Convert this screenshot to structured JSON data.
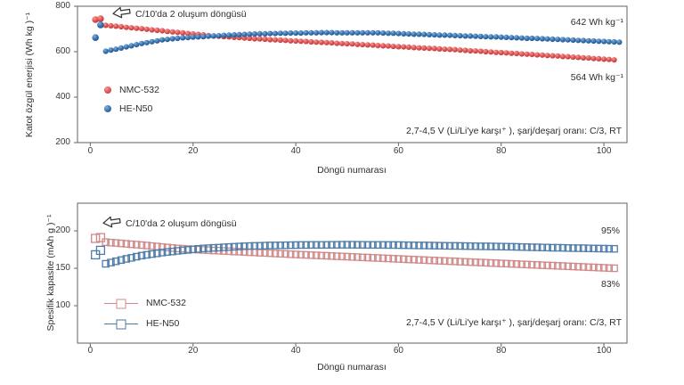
{
  "figure": {
    "background": "#ffffff",
    "text_color": "#2e2e2e",
    "axis_color": "#707070"
  },
  "chart_data": [
    {
      "id": "energy",
      "type": "scatter",
      "marker": "circle",
      "xlabel": "Döngü numarası",
      "ylabel": "Katot özgül enerjisi (Wh kg )⁻¹",
      "xlim": [
        -2.5,
        104.5
      ],
      "ylim": [
        200,
        800
      ],
      "x_ticks": [
        0,
        20,
        40,
        60,
        80,
        100
      ],
      "y_ticks": [
        800,
        600,
        400,
        200
      ],
      "grid": false,
      "legend_position": "center-left",
      "annotations": {
        "formation": "C/10'da 2 oluşum döngüsü",
        "conditions": "2,7-4,5 V (Li/Li'ye karşı⁺ ), şarj/deşarj oranı: C/3, RT",
        "end_value_top": "642 Wh kg⁻¹",
        "end_value_bottom": "564 Wh kg⁻¹"
      },
      "series": [
        {
          "name": "NMC-532",
          "color": "#dd5152",
          "color_light": "#f29a96",
          "color_dark": "#b23434",
          "formation_points": [
            [
              1,
              741
            ],
            [
              2,
              745
            ]
          ],
          "cycle_start": 3,
          "values": [
            716,
            714,
            712,
            710,
            707,
            705,
            703,
            701,
            699,
            696,
            694,
            692,
            689,
            687,
            685,
            683,
            680,
            678,
            676,
            674,
            671,
            669,
            668,
            666,
            665,
            663,
            662,
            660,
            659,
            657,
            656,
            655,
            653,
            652,
            651,
            650,
            648,
            647,
            646,
            645,
            643,
            642,
            641,
            640,
            639,
            637,
            636,
            635,
            634,
            632,
            631,
            630,
            629,
            627,
            626,
            625,
            623,
            622,
            621,
            620,
            618,
            617,
            616,
            615,
            614,
            612,
            611,
            610,
            609,
            607,
            606,
            604,
            603,
            602,
            600,
            599,
            597,
            596,
            595,
            593,
            592,
            590,
            589,
            588,
            586,
            585,
            583,
            582,
            581,
            579,
            578,
            576,
            575,
            573,
            572,
            570,
            569,
            567,
            566,
            564
          ]
        },
        {
          "name": "HE-N50",
          "color": "#3570af",
          "color_light": "#88b0d8",
          "color_dark": "#1d4e85",
          "formation_points": [
            [
              1,
              662
            ],
            [
              2,
              718
            ]
          ],
          "cycle_start": 3,
          "values": [
            602,
            607,
            611,
            616,
            621,
            626,
            631,
            636,
            640,
            644,
            648,
            652,
            654,
            657,
            659,
            661,
            662,
            664,
            665,
            666,
            668,
            669,
            670,
            672,
            673,
            674,
            675,
            676,
            677,
            678,
            679,
            679,
            680,
            680,
            681,
            681,
            682,
            682,
            682,
            683,
            683,
            683,
            684,
            684,
            684,
            683,
            683,
            683,
            683,
            683,
            683,
            683,
            683,
            683,
            682,
            681,
            681,
            680,
            679,
            678,
            677,
            677,
            676,
            675,
            674,
            673,
            673,
            672,
            671,
            670,
            669,
            669,
            668,
            667,
            666,
            665,
            665,
            664,
            663,
            662,
            661,
            660,
            659,
            659,
            658,
            657,
            656,
            655,
            654,
            653,
            652,
            651,
            650,
            649,
            648,
            647,
            646,
            645,
            644,
            643,
            642
          ]
        }
      ]
    },
    {
      "id": "capacity",
      "type": "scatter",
      "marker": "square",
      "xlabel": "Döngü numarası",
      "ylabel": "Spesifik kapasite (mAh g )⁻¹",
      "xlim": [
        -2.5,
        104.5
      ],
      "ylim": [
        50,
        237
      ],
      "x_ticks": [
        0,
        20,
        40,
        60,
        80,
        100
      ],
      "y_ticks": [
        200,
        150,
        100
      ],
      "grid": false,
      "legend_position": "center-left",
      "annotations": {
        "formation": "C/10'da 2 oluşum döngüsü",
        "conditions": "2,7-4,5 V (Li/Li'ye karşı⁺ ), şarj/deşarj oranı: C/3, RT",
        "retention_top": "95%",
        "retention_bottom": "83%"
      },
      "series": [
        {
          "name": "NMC-532",
          "color": "#d08888",
          "formation_points": [
            [
              1,
              190
            ],
            [
              2,
              191
            ]
          ],
          "cycle_start": 3,
          "values": [
            185,
            184.4,
            183.9,
            183.3,
            182.7,
            182.1,
            181.6,
            181,
            180.4,
            179.7,
            179.1,
            178.4,
            177.8,
            177.1,
            176.5,
            176.1,
            175.7,
            175.3,
            174.9,
            174.5,
            174.2,
            173.8,
            173.5,
            173.2,
            172.8,
            172.5,
            172.2,
            171.8,
            171.5,
            171.2,
            170.8,
            170.5,
            170.2,
            169.8,
            169.5,
            169.2,
            168.8,
            168.5,
            168.2,
            167.9,
            167.6,
            167.3,
            167,
            166.7,
            166.4,
            166.1,
            165.8,
            165.5,
            165.2,
            164.9,
            164.6,
            164.3,
            164,
            163.7,
            163.4,
            163.1,
            162.8,
            162.5,
            162.2,
            161.9,
            161.6,
            161.3,
            161,
            160.7,
            160.4,
            160.1,
            159.8,
            159.5,
            159.2,
            158.9,
            158.6,
            158.3,
            158,
            157.7,
            157.4,
            157.1,
            156.8,
            156.5,
            156.2,
            155.9,
            155.6,
            155.3,
            155,
            154.7,
            154.4,
            154.1,
            153.9,
            153.6,
            153.3,
            153,
            152.7,
            152.4,
            152.1,
            151.8,
            151.5,
            151.2,
            150.9,
            150.6,
            150.3,
            150
          ]
        },
        {
          "name": "HE-N50",
          "color": "#4d7caa",
          "formation_points": [
            [
              1,
              168
            ],
            [
              2,
              174
            ]
          ],
          "cycle_start": 3,
          "values": [
            156,
            157.7,
            159.3,
            161,
            162.5,
            164,
            165.5,
            167,
            168,
            169,
            170,
            171,
            171.8,
            172.5,
            173.3,
            174,
            174.6,
            175.3,
            175.9,
            176.5,
            176.9,
            177.3,
            177.6,
            178,
            178.4,
            178.8,
            179.1,
            179.5,
            179.7,
            179.9,
            180.1,
            180.3,
            180.5,
            180.6,
            180.7,
            180.8,
            180.9,
            181,
            181.1,
            181.1,
            181.2,
            181.2,
            181.3,
            181.3,
            181.4,
            181.4,
            181.5,
            181.5,
            181.5,
            181.4,
            181.4,
            181.3,
            181.3,
            181.2,
            181.2,
            181.1,
            181.1,
            181,
            180.9,
            180.8,
            180.7,
            180.6,
            180.5,
            180.4,
            180.3,
            180.2,
            180.1,
            180,
            179.9,
            179.8,
            179.7,
            179.6,
            179.5,
            179.4,
            179.3,
            179.2,
            179.1,
            179,
            178.9,
            178.7,
            178.6,
            178.4,
            178.3,
            178.1,
            178,
            177.8,
            177.7,
            177.5,
            177.4,
            177.3,
            177.1,
            177,
            176.9,
            176.8,
            176.6,
            176.5,
            176.4,
            176.3,
            176.1,
            176
          ]
        }
      ]
    }
  ]
}
